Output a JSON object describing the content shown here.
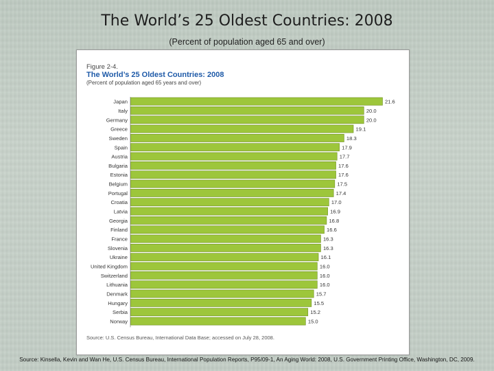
{
  "slide": {
    "title": "The World’s 25 Oldest Countries: 2008",
    "subtitle": "(Percent of population aged 65 and over)",
    "source": "Source: Kinsella, Kevin and Wan He, U.S. Census Bureau, International Population Reports, P95/09-1, An Aging World: 2008, U.S. Government Printing Office, Washington, DC, 2009."
  },
  "figure": {
    "number": "Figure 2-4.",
    "title": "The World’s 25 Oldest Countries: 2008",
    "subtitle": "(Percent of population aged 65 years and over)",
    "source": "Source: U.S. Census Bureau, International Data Base; accessed on July 28, 2008."
  },
  "colors": {
    "bar": "#9dc63b",
    "bar_edge": "#6f8f22",
    "baseline": "#888888"
  },
  "chart_data": {
    "type": "bar",
    "orientation": "horizontal",
    "title": "The World’s 25 Oldest Countries: 2008",
    "subtitle": "(Percent of population aged 65 years and over)",
    "xlabel": "",
    "ylabel": "",
    "xlim": [
      0,
      21.6
    ],
    "grid": false,
    "categories": [
      "Japan",
      "Italy",
      "Germany",
      "Greece",
      "Sweden",
      "Spain",
      "Austria",
      "Bulgaria",
      "Estonia",
      "Belgium",
      "Portugal",
      "Croatia",
      "Latvia",
      "Georgia",
      "Finland",
      "France",
      "Slovenia",
      "Ukraine",
      "United Kingdom",
      "Switzerland",
      "Lithuania",
      "Denmark",
      "Hungary",
      "Serbia",
      "Norway"
    ],
    "values": [
      21.6,
      20.0,
      20.0,
      19.1,
      18.3,
      17.9,
      17.7,
      17.6,
      17.6,
      17.5,
      17.4,
      17.0,
      16.9,
      16.8,
      16.6,
      16.3,
      16.3,
      16.1,
      16.0,
      16.0,
      16.0,
      15.7,
      15.5,
      15.2,
      15.0
    ],
    "data_labels": [
      "21.6",
      "20.0",
      "20.0",
      "19.1",
      "18.3",
      "17.9",
      "17.7",
      "17.6",
      "17.6",
      "17.5",
      "17.4",
      "17.0",
      "16.9",
      "16.8",
      "16.6",
      "16.3",
      "16.3",
      "16.1",
      "16.0",
      "16.0",
      "16.0",
      "15.7",
      "15.5",
      "15.2",
      "15.0"
    ]
  }
}
